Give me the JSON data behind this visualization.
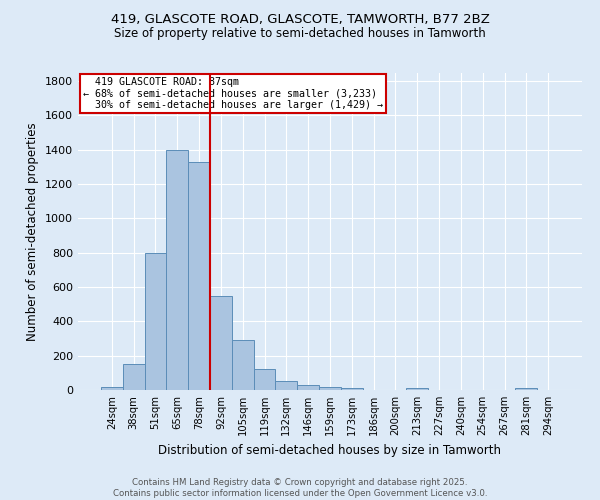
{
  "title_line1": "419, GLASCOTE ROAD, GLASCOTE, TAMWORTH, B77 2BZ",
  "title_line2": "Size of property relative to semi-detached houses in Tamworth",
  "xlabel": "Distribution of semi-detached houses by size in Tamworth",
  "ylabel": "Number of semi-detached properties",
  "categories": [
    "24sqm",
    "38sqm",
    "51sqm",
    "65sqm",
    "78sqm",
    "92sqm",
    "105sqm",
    "119sqm",
    "132sqm",
    "146sqm",
    "159sqm",
    "173sqm",
    "186sqm",
    "200sqm",
    "213sqm",
    "227sqm",
    "240sqm",
    "254sqm",
    "267sqm",
    "281sqm",
    "294sqm"
  ],
  "values": [
    15,
    150,
    800,
    1400,
    1330,
    550,
    290,
    120,
    50,
    30,
    15,
    10,
    0,
    0,
    10,
    0,
    0,
    0,
    0,
    10,
    0
  ],
  "bar_color": "#aac4e0",
  "bar_edge_color": "#5b8db8",
  "property_label": "419 GLASCOTE ROAD: 87sqm",
  "pct_smaller": 68,
  "n_smaller": 3233,
  "pct_larger": 30,
  "n_larger": 1429,
  "vline_x_index": 5,
  "vline_color": "#cc0000",
  "legend_box_color": "#cc0000",
  "ylim": [
    0,
    1850
  ],
  "yticks": [
    0,
    200,
    400,
    600,
    800,
    1000,
    1200,
    1400,
    1600,
    1800
  ],
  "background_color": "#ddeaf7",
  "plot_bg_color": "#ddeaf7",
  "grid_color": "#ffffff",
  "footer_line1": "Contains HM Land Registry data © Crown copyright and database right 2025.",
  "footer_line2": "Contains public sector information licensed under the Open Government Licence v3.0."
}
